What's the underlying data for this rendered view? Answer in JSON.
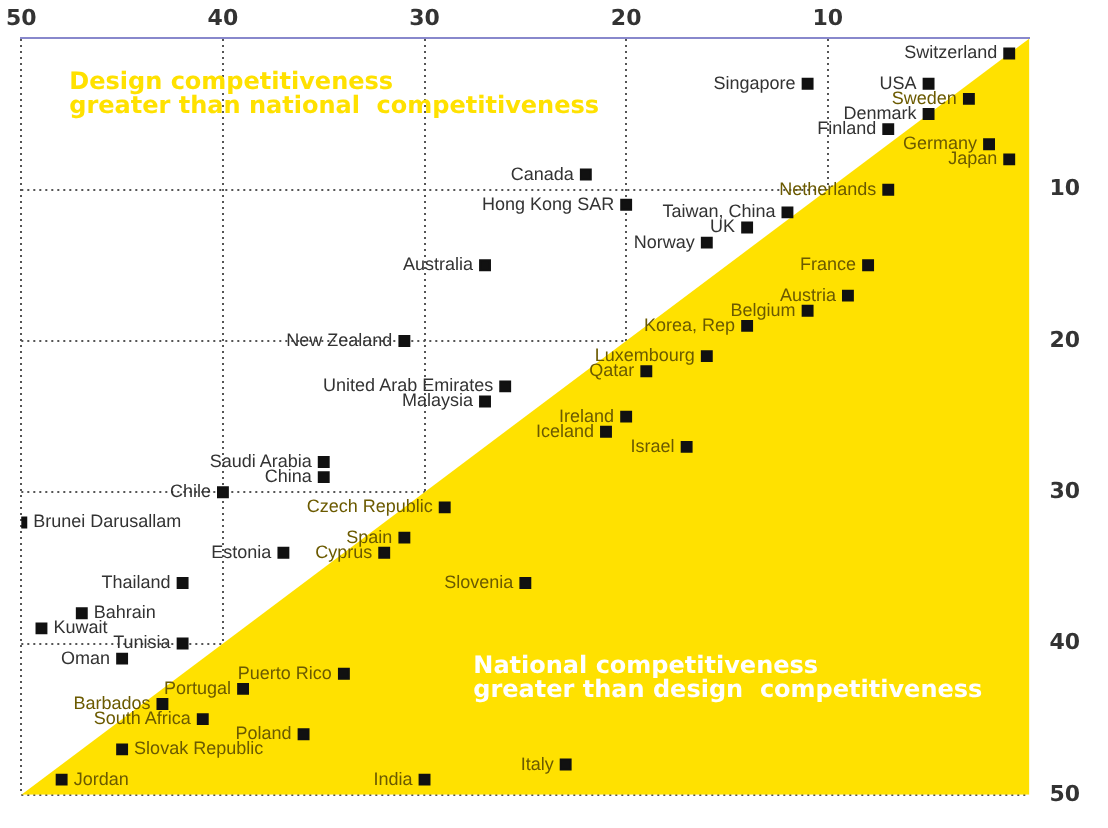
{
  "chart_data": {
    "type": "scatter",
    "xlim": [
      50,
      0
    ],
    "ylim": [
      50,
      0
    ],
    "xticks": [
      50,
      40,
      30,
      20,
      10
    ],
    "yticks": [
      10,
      20,
      30,
      40,
      50
    ],
    "grid": true,
    "legend": false,
    "series": [
      {
        "type": "area",
        "color": "#ffe100",
        "x": [
          50,
          0
        ],
        "values": [
          50,
          0
        ]
      },
      {
        "type": "scatter",
        "color": "#111111",
        "marker": "square",
        "x": [
          1,
          5,
          3,
          5,
          7,
          11,
          2,
          1,
          7,
          22,
          20,
          12,
          14,
          16,
          27,
          8,
          9,
          11,
          14,
          16,
          19,
          31,
          26,
          27,
          20,
          21,
          17,
          35,
          35,
          40,
          50,
          29,
          31,
          32,
          37,
          42,
          25,
          47,
          49,
          42,
          45,
          34,
          39,
          43,
          41,
          36,
          45,
          30,
          23,
          48
        ],
        "values": [
          1,
          3,
          4,
          5,
          6,
          3,
          7,
          8,
          10,
          9,
          11,
          11.5,
          12.5,
          13.5,
          15,
          15,
          17,
          18,
          19,
          21,
          22,
          20,
          23,
          24,
          25,
          26,
          27,
          28,
          29,
          30,
          32,
          31,
          33,
          34,
          34,
          36,
          36,
          38,
          39,
          40,
          41,
          42,
          43,
          44,
          45,
          46,
          47,
          49,
          48,
          49
        ]
      }
    ],
    "annotations": [
      "Design competitiveness\ngreater than national  competitiveness",
      "National competitiveness\ngreater than design  competitiveness",
      {
        "text": "Switzerland",
        "x": 1,
        "y": 1
      },
      {
        "text": "USA",
        "x": 5,
        "y": 3
      },
      {
        "text": "Sweden",
        "x": 3,
        "y": 4
      },
      {
        "text": "Denmark",
        "x": 5,
        "y": 5
      },
      {
        "text": "Finland",
        "x": 7,
        "y": 6
      },
      {
        "text": "Singapore",
        "x": 11,
        "y": 3
      },
      {
        "text": "Germany",
        "x": 2,
        "y": 7
      },
      {
        "text": "Japan",
        "x": 1,
        "y": 8
      },
      {
        "text": "Netherlands",
        "x": 7,
        "y": 10
      },
      {
        "text": "Canada",
        "x": 22,
        "y": 9
      },
      {
        "text": "Hong Kong SAR",
        "x": 20,
        "y": 11
      },
      {
        "text": "Taiwan, China",
        "x": 12,
        "y": 11.5
      },
      {
        "text": "UK",
        "x": 14,
        "y": 12.5
      },
      {
        "text": "Norway",
        "x": 16,
        "y": 13.5
      },
      {
        "text": "Australia",
        "x": 27,
        "y": 15
      },
      {
        "text": "France",
        "x": 8,
        "y": 15
      },
      {
        "text": "Austria",
        "x": 9,
        "y": 17
      },
      {
        "text": "Belgium",
        "x": 11,
        "y": 18
      },
      {
        "text": "Korea, Rep",
        "x": 14,
        "y": 19
      },
      {
        "text": "Luxembourg",
        "x": 16,
        "y": 21
      },
      {
        "text": "Qatar",
        "x": 19,
        "y": 22
      },
      {
        "text": "New Zealand",
        "x": 31,
        "y": 20
      },
      {
        "text": "United Arab Emirates",
        "x": 26,
        "y": 23
      },
      {
        "text": "Malaysia",
        "x": 27,
        "y": 24
      },
      {
        "text": "Ireland",
        "x": 20,
        "y": 25
      },
      {
        "text": "Iceland",
        "x": 21,
        "y": 26
      },
      {
        "text": "Israel",
        "x": 17,
        "y": 27
      },
      {
        "text": "Saudi Arabia",
        "x": 35,
        "y": 28
      },
      {
        "text": "China",
        "x": 35,
        "y": 29
      },
      {
        "text": "Chile",
        "x": 40,
        "y": 30
      },
      {
        "text": "Brunei Darusallam",
        "x": 50,
        "y": 32
      },
      {
        "text": "Czech Republic",
        "x": 29,
        "y": 31
      },
      {
        "text": "Spain",
        "x": 31,
        "y": 33
      },
      {
        "text": "Cyprus",
        "x": 32,
        "y": 34
      },
      {
        "text": "Estonia",
        "x": 37,
        "y": 34
      },
      {
        "text": "Thailand",
        "x": 42,
        "y": 36
      },
      {
        "text": "Slovenia",
        "x": 25,
        "y": 36
      },
      {
        "text": "Bahrain",
        "x": 47,
        "y": 38
      },
      {
        "text": "Kuwait",
        "x": 49,
        "y": 39
      },
      {
        "text": "Tunisia",
        "x": 42,
        "y": 40
      },
      {
        "text": "Oman",
        "x": 45,
        "y": 41
      },
      {
        "text": "Puerto Rico",
        "x": 34,
        "y": 42
      },
      {
        "text": "Portugal",
        "x": 39,
        "y": 43
      },
      {
        "text": "Barbados",
        "x": 43,
        "y": 44
      },
      {
        "text": "South Africa",
        "x": 41,
        "y": 45
      },
      {
        "text": "Poland",
        "x": 36,
        "y": 46
      },
      {
        "text": "Slovak Republic",
        "x": 45,
        "y": 47
      },
      {
        "text": "India",
        "x": 30,
        "y": 49
      },
      {
        "text": "Italy",
        "x": 23,
        "y": 48
      },
      {
        "text": "Jordan",
        "x": 48,
        "y": 49
      }
    ]
  }
}
